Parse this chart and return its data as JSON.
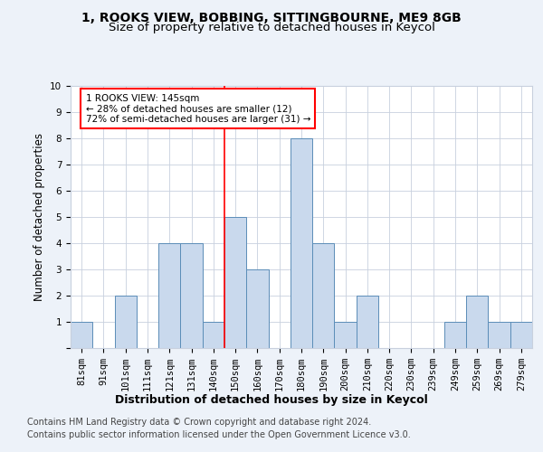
{
  "title_line1": "1, ROOKS VIEW, BOBBING, SITTINGBOURNE, ME9 8GB",
  "title_line2": "Size of property relative to detached houses in Keycol",
  "xlabel": "Distribution of detached houses by size in Keycol",
  "ylabel": "Number of detached properties",
  "categories": [
    "81sqm",
    "91sqm",
    "101sqm",
    "111sqm",
    "121sqm",
    "131sqm",
    "140sqm",
    "150sqm",
    "160sqm",
    "170sqm",
    "180sqm",
    "190sqm",
    "200sqm",
    "210sqm",
    "220sqm",
    "230sqm",
    "239sqm",
    "249sqm",
    "259sqm",
    "269sqm",
    "279sqm"
  ],
  "values": [
    1,
    0,
    2,
    0,
    4,
    4,
    1,
    5,
    3,
    0,
    8,
    4,
    1,
    2,
    0,
    0,
    0,
    1,
    2,
    1,
    1
  ],
  "bar_color": "#c9d9ed",
  "bar_edge_color": "#5b8db8",
  "vline_x": 6.5,
  "annotation_text_line1": "1 ROOKS VIEW: 145sqm",
  "annotation_text_line2": "← 28% of detached houses are smaller (12)",
  "annotation_text_line3": "72% of semi-detached houses are larger (31) →",
  "annotation_box_color": "white",
  "annotation_box_edge_color": "red",
  "vline_color": "red",
  "ylim": [
    0,
    10
  ],
  "yticks": [
    0,
    1,
    2,
    3,
    4,
    5,
    6,
    7,
    8,
    9,
    10
  ],
  "footer_line1": "Contains HM Land Registry data © Crown copyright and database right 2024.",
  "footer_line2": "Contains public sector information licensed under the Open Government Licence v3.0.",
  "background_color": "#edf2f9",
  "plot_background_color": "#ffffff",
  "grid_color": "#c8d0de",
  "title_fontsize": 10,
  "subtitle_fontsize": 9.5,
  "axis_label_fontsize": 8.5,
  "tick_fontsize": 7.5,
  "annotation_fontsize": 7.5,
  "footer_fontsize": 7
}
